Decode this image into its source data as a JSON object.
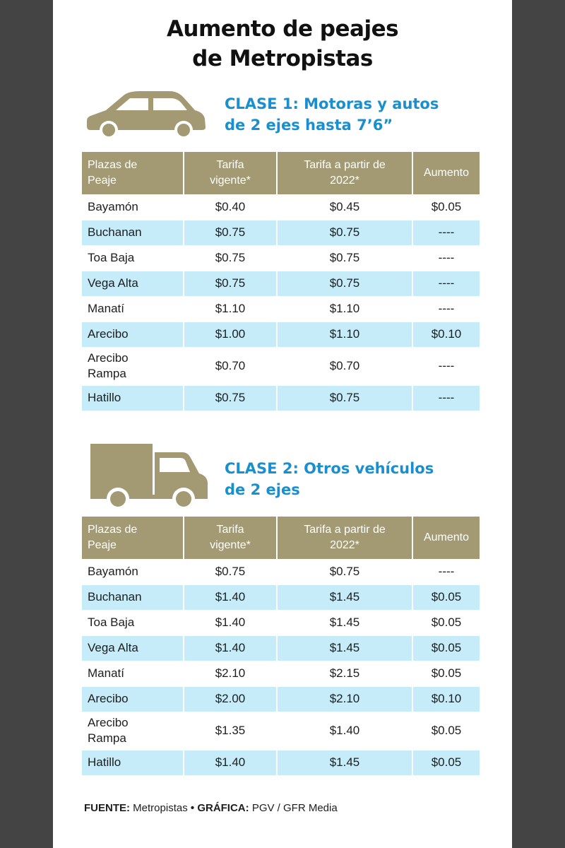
{
  "title": {
    "line1": "Aumento de peajes",
    "line2": "de Metropistas"
  },
  "headers": {
    "plaza_line1": "Plazas de",
    "plaza_line2": "Peaje",
    "current_line1": "Tarifa",
    "current_line2": "vigente*",
    "new_line1": "Tarifa a partir de",
    "new_line2": "2022*",
    "increase": "Aumento"
  },
  "class1": {
    "icon": "car-icon",
    "heading_line1": "CLASE 1: Motoras y autos",
    "heading_line2": "de 2 ejes hasta 7’6”",
    "rows": [
      {
        "plaza": "Bayamón",
        "current": "$0.40",
        "new": "$0.45",
        "increase": "$0.05"
      },
      {
        "plaza": "Buchanan",
        "current": "$0.75",
        "new": "$0.75",
        "increase": "----"
      },
      {
        "plaza": "Toa Baja",
        "current": "$0.75",
        "new": "$0.75",
        "increase": "----"
      },
      {
        "plaza": "Vega Alta",
        "current": "$0.75",
        "new": "$0.75",
        "increase": "----"
      },
      {
        "plaza": "Manatí",
        "current": "$1.10",
        "new": "$1.10",
        "increase": "----"
      },
      {
        "plaza": "Arecibo",
        "current": "$1.00",
        "new": "$1.10",
        "increase": "$0.10"
      },
      {
        "plaza": "Arecibo Rampa",
        "plaza_line1": "Arecibo",
        "plaza_line2": "Rampa",
        "current": "$0.70",
        "new": "$0.70",
        "increase": "----"
      },
      {
        "plaza": "Hatillo",
        "current": "$0.75",
        "new": "$0.75",
        "increase": "----"
      }
    ]
  },
  "class2": {
    "icon": "truck-icon",
    "heading_line1": "CLASE 2: Otros vehículos",
    "heading_line2": "de 2 ejes",
    "rows": [
      {
        "plaza": "Bayamón",
        "current": "$0.75",
        "new": "$0.75",
        "increase": "----"
      },
      {
        "plaza": "Buchanan",
        "current": "$1.40",
        "new": "$1.45",
        "increase": "$0.05"
      },
      {
        "plaza": "Toa Baja",
        "current": "$1.40",
        "new": "$1.45",
        "increase": "$0.05"
      },
      {
        "plaza": "Vega Alta",
        "current": "$1.40",
        "new": "$1.45",
        "increase": "$0.05"
      },
      {
        "plaza": "Manatí",
        "current": "$2.10",
        "new": "$2.15",
        "increase": "$0.05"
      },
      {
        "plaza": "Arecibo",
        "current": "$2.00",
        "new": "$2.10",
        "increase": "$0.10"
      },
      {
        "plaza": "Arecibo Rampa",
        "plaza_line1": "Arecibo",
        "plaza_line2": "Rampa",
        "current": "$1.35",
        "new": "$1.40",
        "increase": "$0.05"
      },
      {
        "plaza": "Hatillo",
        "current": "$1.40",
        "new": "$1.45",
        "increase": "$0.05"
      }
    ]
  },
  "footer": {
    "source_label": "FUENTE:",
    "source_value": "Metropistas",
    "separator": "•",
    "graphic_label": "GRÁFICA:",
    "graphic_value": "PGV / GFR Media"
  },
  "colors": {
    "header_bg": "#a39a74",
    "alt_row_bg": "#c6ebf9",
    "heading_blue": "#1a8fd0",
    "icon_color": "#a39a74",
    "frame": "#444444"
  }
}
